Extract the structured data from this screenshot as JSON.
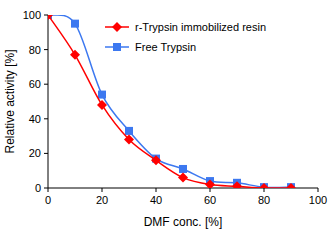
{
  "chart_data": {
    "type": "line",
    "x_label": "DMF conc. [%]",
    "y_label": "Relative activity [%]",
    "x": [
      0,
      10,
      20,
      30,
      40,
      50,
      60,
      70,
      80,
      90
    ],
    "series": [
      {
        "name": "r-Trypsin immobilized resin",
        "color": "#ff0000",
        "marker": "diamond",
        "line_style": "smooth",
        "values": [
          100,
          77,
          48,
          28,
          16,
          6,
          2,
          1,
          0,
          0
        ]
      },
      {
        "name": "Free Trypsin",
        "color": "#3c78f0",
        "marker": "square",
        "line_style": "smooth",
        "values": [
          100,
          95,
          54,
          33,
          17,
          11,
          4,
          3,
          0.5,
          0.5
        ]
      }
    ],
    "xlim": [
      0,
      100
    ],
    "xticks": [
      0,
      20,
      40,
      60,
      80,
      100
    ],
    "ylim": [
      0,
      100
    ],
    "yticks": [
      0,
      20,
      40,
      60,
      80,
      100
    ],
    "grid": false,
    "legend": "upper right"
  }
}
